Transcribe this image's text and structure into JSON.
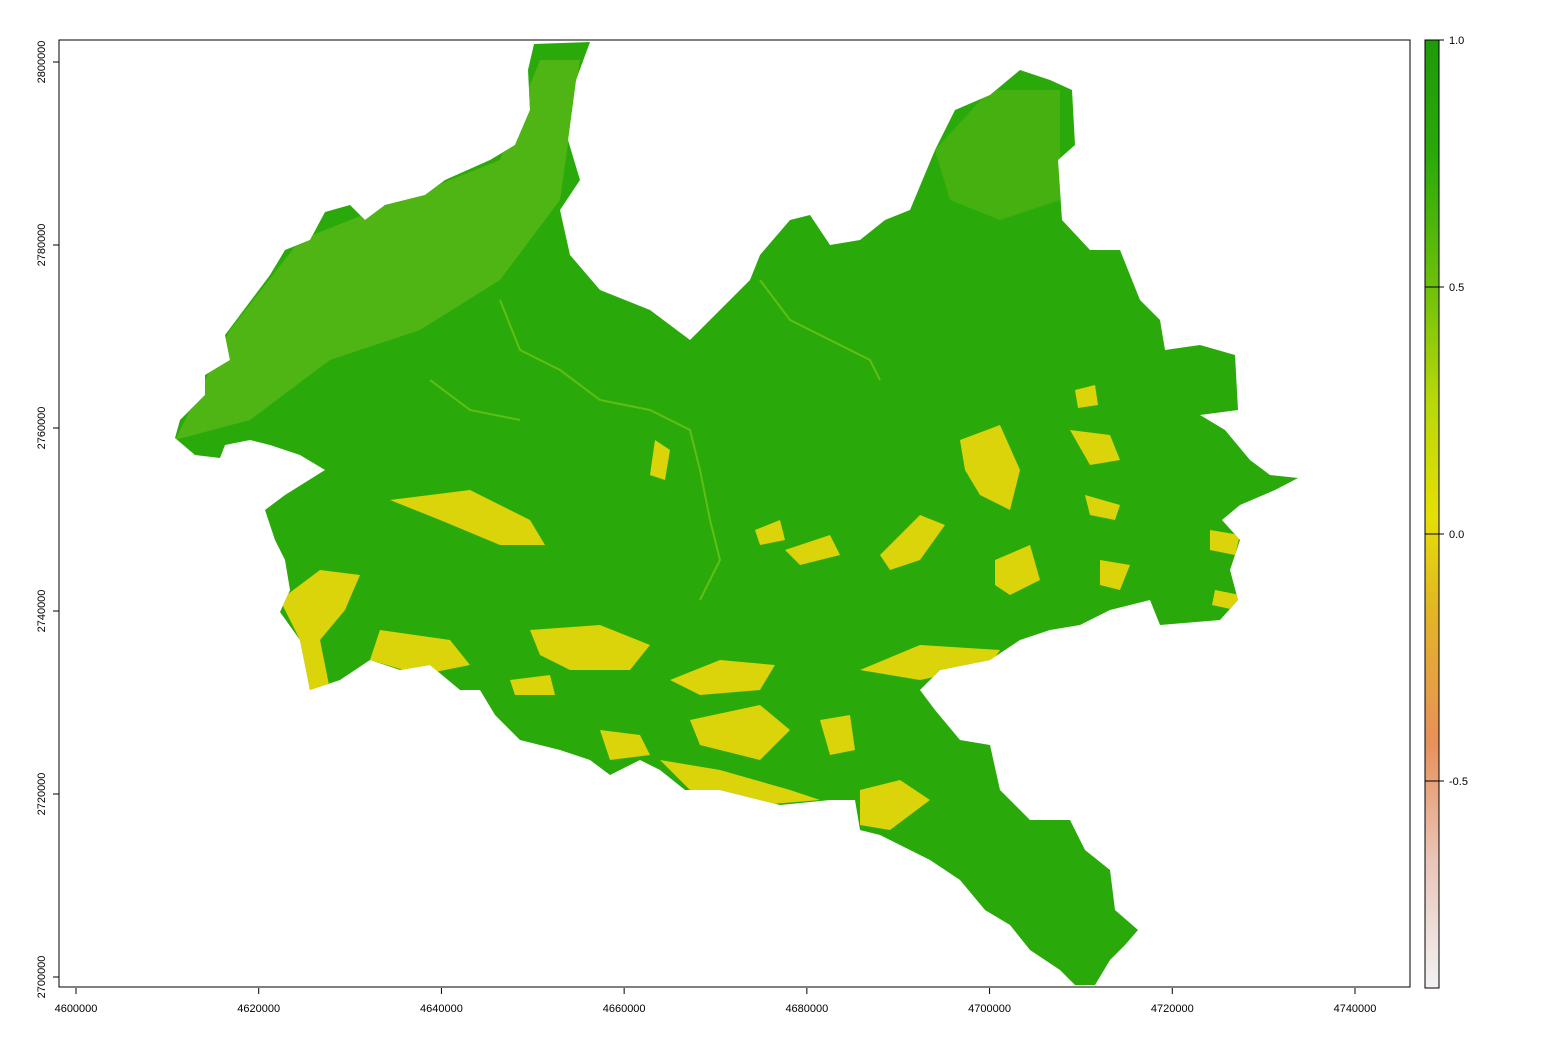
{
  "chart_data": {
    "type": "heatmap",
    "title": "",
    "xlabel": "",
    "ylabel": "",
    "x_range": [
      4600000,
      4740000
    ],
    "y_range": [
      2700000,
      2800000
    ],
    "x_ticks": [
      "4600000",
      "4620000",
      "4640000",
      "4660000",
      "4680000",
      "4700000",
      "4720000",
      "4740000"
    ],
    "y_ticks": [
      "2700000",
      "2720000",
      "2740000",
      "2760000",
      "2780000",
      "2800000"
    ],
    "legend": {
      "placement": "right",
      "range": [
        -1.0,
        1.0
      ],
      "ticks": [
        "1.0",
        "0.5",
        "0.0",
        "-0.5"
      ],
      "colors": [
        "#f2f2f2",
        "#e9b6a6",
        "#e8905a",
        "#e2b624",
        "#e5e005",
        "#b8d80a",
        "#69bf0a",
        "#2aa90a",
        "#1f9a0a"
      ]
    },
    "regions": [
      {
        "name": "raster-background",
        "value": 0.75,
        "color": "#2aa90a"
      },
      {
        "name": "low-value-patch",
        "value": 0.05,
        "color": "#dcd40a"
      }
    ]
  }
}
